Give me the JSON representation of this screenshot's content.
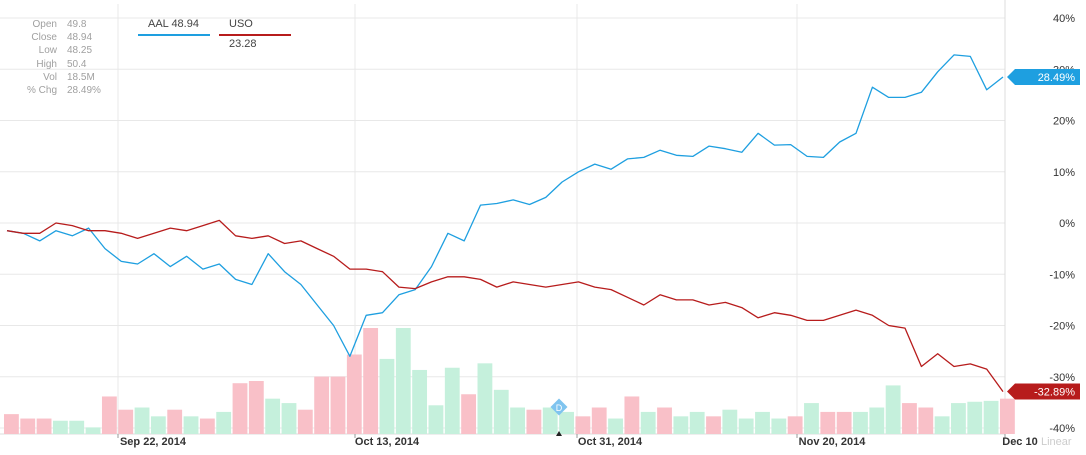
{
  "ohlc": [
    {
      "label": "Open",
      "value": "49.8"
    },
    {
      "label": "Close",
      "value": "48.94"
    },
    {
      "label": "Low",
      "value": "48.25"
    },
    {
      "label": "High",
      "value": "50.4"
    },
    {
      "label": "Vol",
      "value": "18.5M"
    },
    {
      "label": "% Chg",
      "value": "28.49%"
    }
  ],
  "scale_label": "Linear",
  "colors": {
    "aal": "#1e9fe0",
    "uso": "#b71c1c",
    "vol_up": "#c5f0dc",
    "vol_down": "#f9c0c8"
  },
  "chart_data": {
    "type": "line",
    "ylim": [
      -40,
      40
    ],
    "yticks": [
      40,
      30,
      20,
      10,
      0,
      -10,
      -20,
      -30,
      -40
    ],
    "ytick_labels": [
      "40%",
      "30%",
      "20%",
      "10%",
      "0%",
      "-10%",
      "-20%",
      "-30%",
      "-40%"
    ],
    "x_labels": [
      "Sep 22, 2014",
      "Oct 13, 2014",
      "Oct 31, 2014",
      "Nov 20, 2014",
      "Dec 10"
    ],
    "legend": [
      "AAL 48.94",
      "USO 23.28"
    ],
    "last_value_tags": [
      "28.49%",
      "-32.89%"
    ],
    "event_marker": "D",
    "series": [
      {
        "name": "AAL 48.94",
        "values": [
          -1.5,
          -2,
          -3.5,
          -1.5,
          -2.5,
          -1,
          -5,
          -7.5,
          -8,
          -6,
          -8.5,
          -6.5,
          -9,
          -8,
          -11,
          -12,
          -6,
          -9.5,
          -12,
          -16,
          -20,
          -26,
          -18,
          -17.5,
          -14,
          -13,
          -8.5,
          -2,
          -3.5,
          3.5,
          3.8,
          4.5,
          3.6,
          5,
          8,
          10,
          11.5,
          10.5,
          12.5,
          12.8,
          14.2,
          13.2,
          13,
          15,
          14.5,
          13.8,
          17.5,
          15.2,
          15.3,
          13,
          12.8,
          15.8,
          17.5,
          26.5,
          24.5,
          24.5,
          25.5,
          29.5,
          32.8,
          32.5,
          26,
          28.49
        ]
      },
      {
        "name": "USO 23.28",
        "values": [
          -1.5,
          -2,
          -2,
          0,
          -0.5,
          -1.5,
          -1.5,
          -2,
          -3,
          -2,
          -1,
          -1.5,
          -0.5,
          0.5,
          -2.5,
          -3,
          -2.5,
          -4,
          -3.5,
          -5,
          -6.5,
          -9,
          -9,
          -9.5,
          -12.5,
          -12.8,
          -11.5,
          -10.5,
          -10.5,
          -11,
          -12.5,
          -11.5,
          -12,
          -12.5,
          -12,
          -11.5,
          -12.5,
          -13,
          -14.5,
          -16,
          -14,
          -15,
          -15,
          -16,
          -15.5,
          -16.5,
          -18.5,
          -17.5,
          -18,
          -19,
          -19,
          -18,
          -17,
          -18,
          -20,
          -20.5,
          -28,
          -25.5,
          -28,
          -27.5,
          -28.5,
          -32.89
        ]
      }
    ],
    "volume": {
      "values": [
        4.5,
        3.5,
        3.5,
        3,
        3,
        1.5,
        8.5,
        5.5,
        6,
        4,
        5.5,
        4,
        3.5,
        5,
        11.5,
        12,
        8,
        7,
        5.5,
        13,
        13,
        18,
        24,
        17,
        24,
        14.5,
        6.5,
        15,
        9,
        16,
        10,
        6,
        5.5,
        6,
        5,
        4,
        6,
        3.5,
        8.5,
        5,
        6,
        4,
        5,
        4,
        5.5,
        3.5,
        5,
        3.5,
        4,
        7,
        5,
        5,
        5,
        6,
        11,
        7,
        6,
        4,
        7,
        7.3,
        7.5,
        8
      ],
      "up": [
        0,
        0,
        0,
        1,
        1,
        1,
        0,
        0,
        1,
        1,
        0,
        1,
        0,
        1,
        0,
        0,
        1,
        1,
        0,
        0,
        0,
        0,
        0,
        1,
        1,
        1,
        1,
        1,
        0,
        1,
        1,
        1,
        0,
        1,
        1,
        0,
        0,
        1,
        0,
        1,
        0,
        1,
        1,
        0,
        1,
        1,
        1,
        1,
        0,
        1,
        0,
        0,
        1,
        1,
        1,
        0,
        0,
        1,
        1,
        1,
        1,
        0
      ]
    }
  }
}
